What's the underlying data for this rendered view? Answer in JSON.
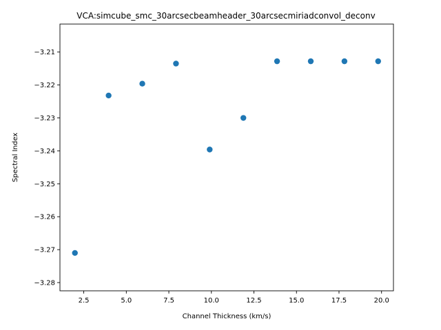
{
  "chart_data": {
    "type": "scatter",
    "title": "VCA:simcube_smc_30arcsecbeamheader_30arcsecmiriadconvol_deconv",
    "xlabel": "Channel Thickness (km/s)",
    "ylabel": "Spectral Index",
    "xlim": [
      1.1,
      20.7
    ],
    "ylim": [
      -3.2825,
      -3.2015
    ],
    "x_ticks": [
      2.5,
      5.0,
      7.5,
      10.0,
      12.5,
      15.0,
      17.5,
      20.0
    ],
    "x_tick_labels": [
      "2.5",
      "5.0",
      "7.5",
      "10.0",
      "12.5",
      "15.0",
      "17.5",
      "20.0"
    ],
    "y_ticks": [
      -3.21,
      -3.22,
      -3.23,
      -3.24,
      -3.25,
      -3.26,
      -3.27,
      -3.28
    ],
    "y_tick_labels": [
      "−3.21",
      "−3.22",
      "−3.23",
      "−3.24",
      "−3.25",
      "−3.26",
      "−3.27",
      "−3.28"
    ],
    "grid": false,
    "marker_color": "#1f77b4",
    "points": [
      {
        "x": 1.98,
        "y": -3.271
      },
      {
        "x": 3.96,
        "y": -3.2232
      },
      {
        "x": 5.94,
        "y": -3.2196
      },
      {
        "x": 7.92,
        "y": -3.2135
      },
      {
        "x": 9.9,
        "y": -3.2396
      },
      {
        "x": 11.88,
        "y": -3.23
      },
      {
        "x": 13.86,
        "y": -3.2128
      },
      {
        "x": 15.84,
        "y": -3.2128
      },
      {
        "x": 17.82,
        "y": -3.2128
      },
      {
        "x": 19.8,
        "y": -3.2128
      }
    ]
  }
}
